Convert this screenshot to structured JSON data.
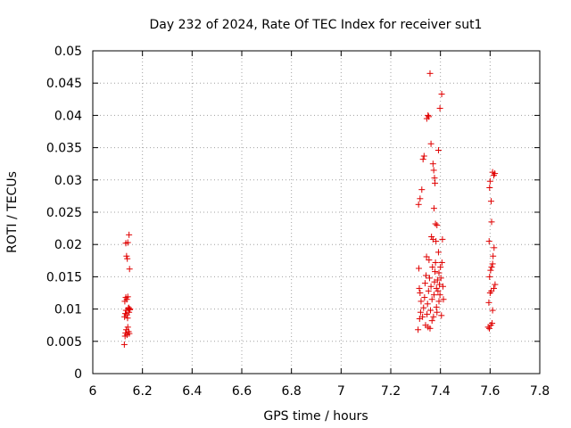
{
  "chart_data": {
    "type": "scatter",
    "title": "Day 232 of 2024, Rate Of TEC Index for receiver sut1",
    "xlabel": "GPS time / hours",
    "ylabel": "ROTI / TECUs",
    "xlim": [
      6,
      7.8
    ],
    "ylim": [
      0,
      0.05
    ],
    "grid": true,
    "x_ticks": [
      6,
      6.2,
      6.4,
      6.6,
      6.8,
      7,
      7.2,
      7.4,
      7.6,
      7.8
    ],
    "x_tick_labels": [
      "6",
      "6.2",
      "6.4",
      "6.6",
      "6.8",
      "7",
      "7.2",
      "7.4",
      "7.6",
      "7.8"
    ],
    "y_ticks": [
      0,
      0.005,
      0.01,
      0.015,
      0.02,
      0.025,
      0.03,
      0.035,
      0.04,
      0.045,
      0.05
    ],
    "y_tick_labels": [
      "0",
      "0.005",
      "0.01",
      "0.015",
      "0.02",
      "0.025",
      "0.03",
      "0.035",
      "0.04",
      "0.045",
      "0.05"
    ],
    "marker": "+",
    "color": "#e00000",
    "points": [
      [
        6.127,
        0.0045
      ],
      [
        6.13,
        0.0058
      ],
      [
        6.132,
        0.0063
      ],
      [
        6.135,
        0.0068
      ],
      [
        6.138,
        0.006
      ],
      [
        6.141,
        0.0072
      ],
      [
        6.144,
        0.0065
      ],
      [
        6.147,
        0.0062
      ],
      [
        6.128,
        0.0088
      ],
      [
        6.131,
        0.0093
      ],
      [
        6.134,
        0.0098
      ],
      [
        6.137,
        0.0091
      ],
      [
        6.14,
        0.0086
      ],
      [
        6.143,
        0.0101
      ],
      [
        6.146,
        0.0095
      ],
      [
        6.149,
        0.0099
      ],
      [
        6.129,
        0.0112
      ],
      [
        6.133,
        0.0118
      ],
      [
        6.137,
        0.0115
      ],
      [
        6.141,
        0.0119
      ],
      [
        6.145,
        0.0102
      ],
      [
        6.15,
        0.01
      ],
      [
        6.136,
        0.0182
      ],
      [
        6.139,
        0.0178
      ],
      [
        6.133,
        0.0202
      ],
      [
        6.141,
        0.0203
      ],
      [
        6.146,
        0.0215
      ],
      [
        6.148,
        0.0162
      ],
      [
        7.312,
        0.0262
      ],
      [
        7.318,
        0.0271
      ],
      [
        7.325,
        0.0285
      ],
      [
        7.33,
        0.0332
      ],
      [
        7.334,
        0.0337
      ],
      [
        7.345,
        0.0395
      ],
      [
        7.35,
        0.04
      ],
      [
        7.353,
        0.0398
      ],
      [
        7.358,
        0.0465
      ],
      [
        7.362,
        0.0356
      ],
      [
        7.37,
        0.0325
      ],
      [
        7.373,
        0.0315
      ],
      [
        7.376,
        0.0303
      ],
      [
        7.378,
        0.0295
      ],
      [
        7.374,
        0.0256
      ],
      [
        7.38,
        0.0232
      ],
      [
        7.386,
        0.023
      ],
      [
        7.392,
        0.0346
      ],
      [
        7.398,
        0.0411
      ],
      [
        7.405,
        0.0433
      ],
      [
        7.31,
        0.0068
      ],
      [
        7.316,
        0.0085
      ],
      [
        7.32,
        0.0095
      ],
      [
        7.322,
        0.0112
      ],
      [
        7.318,
        0.0125
      ],
      [
        7.315,
        0.0132
      ],
      [
        7.313,
        0.0163
      ],
      [
        7.328,
        0.0088
      ],
      [
        7.332,
        0.0102
      ],
      [
        7.336,
        0.0118
      ],
      [
        7.338,
        0.014
      ],
      [
        7.34,
        0.0075
      ],
      [
        7.342,
        0.0152
      ],
      [
        7.344,
        0.0181
      ],
      [
        7.346,
        0.0092
      ],
      [
        7.348,
        0.0108
      ],
      [
        7.35,
        0.0072
      ],
      [
        7.352,
        0.0128
      ],
      [
        7.354,
        0.0176
      ],
      [
        7.356,
        0.0148
      ],
      [
        7.358,
        0.007
      ],
      [
        7.36,
        0.0098
      ],
      [
        7.362,
        0.0135
      ],
      [
        7.364,
        0.0212
      ],
      [
        7.366,
        0.0115
      ],
      [
        7.368,
        0.0165
      ],
      [
        7.37,
        0.0208
      ],
      [
        7.372,
        0.0088
      ],
      [
        7.374,
        0.0122
      ],
      [
        7.376,
        0.0142
      ],
      [
        7.378,
        0.0158
      ],
      [
        7.38,
        0.0172
      ],
      [
        7.382,
        0.0205
      ],
      [
        7.384,
        0.0132
      ],
      [
        7.386,
        0.0095
      ],
      [
        7.388,
        0.0145
      ],
      [
        7.39,
        0.0128
      ],
      [
        7.392,
        0.0188
      ],
      [
        7.394,
        0.0156
      ],
      [
        7.396,
        0.0138
      ],
      [
        7.398,
        0.0122
      ],
      [
        7.4,
        0.0165
      ],
      [
        7.402,
        0.0148
      ],
      [
        7.404,
        0.009
      ],
      [
        7.406,
        0.0172
      ],
      [
        7.408,
        0.0208
      ],
      [
        7.41,
        0.0135
      ],
      [
        7.412,
        0.0115
      ],
      [
        7.366,
        0.0082
      ],
      [
        7.384,
        0.0103
      ],
      [
        7.394,
        0.0112
      ],
      [
        7.592,
        0.0072
      ],
      [
        7.597,
        0.007
      ],
      [
        7.603,
        0.0075
      ],
      [
        7.608,
        0.0078
      ],
      [
        7.595,
        0.011
      ],
      [
        7.6,
        0.0125
      ],
      [
        7.605,
        0.0128
      ],
      [
        7.61,
        0.0098
      ],
      [
        7.615,
        0.0132
      ],
      [
        7.62,
        0.0138
      ],
      [
        7.598,
        0.015
      ],
      [
        7.602,
        0.016
      ],
      [
        7.606,
        0.0165
      ],
      [
        7.61,
        0.017
      ],
      [
        7.596,
        0.0205
      ],
      [
        7.606,
        0.0235
      ],
      [
        7.612,
        0.0182
      ],
      [
        7.616,
        0.0195
      ],
      [
        7.598,
        0.0288
      ],
      [
        7.6,
        0.0298
      ],
      [
        7.604,
        0.0267
      ],
      [
        7.61,
        0.0312
      ],
      [
        7.615,
        0.0307
      ],
      [
        7.619,
        0.031
      ]
    ]
  }
}
